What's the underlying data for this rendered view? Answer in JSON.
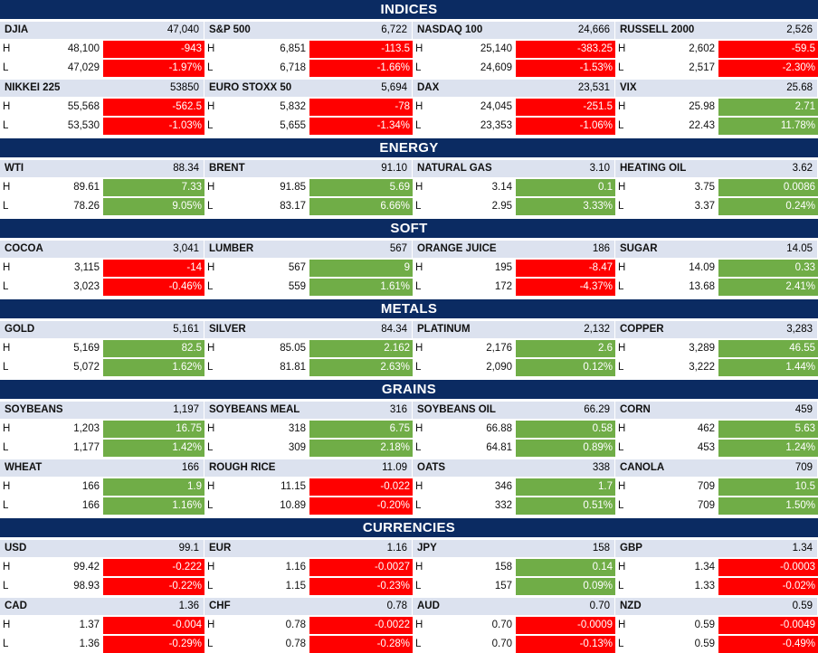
{
  "sections": [
    {
      "title": "INDICES",
      "rows": [
        [
          {
            "name": "DJIA",
            "price": "47,040",
            "high": "48,100",
            "low": "47,029",
            "chg": "-943",
            "pct": "-1.97%",
            "dir": "down"
          },
          {
            "name": "S&P 500",
            "price": "6,722",
            "high": "6,851",
            "low": "6,718",
            "chg": "-113.5",
            "pct": "-1.66%",
            "dir": "down"
          },
          {
            "name": "NASDAQ 100",
            "price": "24,666",
            "high": "25,140",
            "low": "24,609",
            "chg": "-383.25",
            "pct": "-1.53%",
            "dir": "down"
          },
          {
            "name": "RUSSELL 2000",
            "price": "2,526",
            "high": "2,602",
            "low": "2,517",
            "chg": "-59.5",
            "pct": "-2.30%",
            "dir": "down"
          }
        ],
        [
          {
            "name": "NIKKEI 225",
            "price": "53850",
            "high": "55,568",
            "low": "53,530",
            "chg": "-562.5",
            "pct": "-1.03%",
            "dir": "down"
          },
          {
            "name": "EURO STOXX 50",
            "price": "5,694",
            "high": "5,832",
            "low": "5,655",
            "chg": "-78",
            "pct": "-1.34%",
            "dir": "down"
          },
          {
            "name": "DAX",
            "price": "23,531",
            "high": "24,045",
            "low": "23,353",
            "chg": "-251.5",
            "pct": "-1.06%",
            "dir": "down"
          },
          {
            "name": "VIX",
            "price": "25.68",
            "high": "25.98",
            "low": "22.43",
            "chg": "2.71",
            "pct": "11.78%",
            "dir": "up"
          }
        ]
      ]
    },
    {
      "title": "ENERGY",
      "rows": [
        [
          {
            "name": "WTI",
            "price": "88.34",
            "high": "89.61",
            "low": "78.26",
            "chg": "7.33",
            "pct": "9.05%",
            "dir": "up"
          },
          {
            "name": "BRENT",
            "price": "91.10",
            "high": "91.85",
            "low": "83.17",
            "chg": "5.69",
            "pct": "6.66%",
            "dir": "up"
          },
          {
            "name": "NATURAL GAS",
            "price": "3.10",
            "high": "3.14",
            "low": "2.95",
            "chg": "0.1",
            "pct": "3.33%",
            "dir": "up"
          },
          {
            "name": "HEATING OIL",
            "price": "3.62",
            "high": "3.75",
            "low": "3.37",
            "chg": "0.0086",
            "pct": "0.24%",
            "dir": "up"
          }
        ]
      ]
    },
    {
      "title": "SOFT",
      "rows": [
        [
          {
            "name": "COCOA",
            "price": "3,041",
            "high": "3,115",
            "low": "3,023",
            "chg": "-14",
            "pct": "-0.46%",
            "dir": "down"
          },
          {
            "name": "LUMBER",
            "price": "567",
            "high": "567",
            "low": "559",
            "chg": "9",
            "pct": "1.61%",
            "dir": "up"
          },
          {
            "name": "ORANGE JUICE",
            "price": "186",
            "high": "195",
            "low": "172",
            "chg": "-8.47",
            "pct": "-4.37%",
            "dir": "down"
          },
          {
            "name": "SUGAR",
            "price": "14.05",
            "high": "14.09",
            "low": "13.68",
            "chg": "0.33",
            "pct": "2.41%",
            "dir": "up"
          }
        ]
      ]
    },
    {
      "title": "METALS",
      "rows": [
        [
          {
            "name": "GOLD",
            "price": "5,161",
            "high": "5,169",
            "low": "5,072",
            "chg": "82.5",
            "pct": "1.62%",
            "dir": "up"
          },
          {
            "name": "SILVER",
            "price": "84.34",
            "high": "85.05",
            "low": "81.81",
            "chg": "2.162",
            "pct": "2.63%",
            "dir": "up"
          },
          {
            "name": "PLATINUM",
            "price": "2,132",
            "high": "2,176",
            "low": "2,090",
            "chg": "2.6",
            "pct": "0.12%",
            "dir": "up"
          },
          {
            "name": "COPPER",
            "price": "3,283",
            "high": "3,289",
            "low": "3,222",
            "chg": "46.55",
            "pct": "1.44%",
            "dir": "up"
          }
        ]
      ]
    },
    {
      "title": "GRAINS",
      "rows": [
        [
          {
            "name": "SOYBEANS",
            "price": "1,197",
            "high": "1,203",
            "low": "1,177",
            "chg": "16.75",
            "pct": "1.42%",
            "dir": "up"
          },
          {
            "name": "SOYBEANS MEAL",
            "price": "316",
            "high": "318",
            "low": "309",
            "chg": "6.75",
            "pct": "2.18%",
            "dir": "up"
          },
          {
            "name": "SOYBEANS OIL",
            "price": "66.29",
            "high": "66.88",
            "low": "64.81",
            "chg": "0.58",
            "pct": "0.89%",
            "dir": "up"
          },
          {
            "name": "CORN",
            "price": "459",
            "high": "462",
            "low": "453",
            "chg": "5.63",
            "pct": "1.24%",
            "dir": "up"
          }
        ],
        [
          {
            "name": "WHEAT",
            "price": "166",
            "high": "166",
            "low": "166",
            "chg": "1.9",
            "pct": "1.16%",
            "dir": "up"
          },
          {
            "name": "ROUGH RICE",
            "price": "11.09",
            "high": "11.15",
            "low": "10.89",
            "chg": "-0.022",
            "pct": "-0.20%",
            "dir": "down"
          },
          {
            "name": "OATS",
            "price": "338",
            "high": "346",
            "low": "332",
            "chg": "1.7",
            "pct": "0.51%",
            "dir": "up"
          },
          {
            "name": "CANOLA",
            "price": "709",
            "high": "709",
            "low": "709",
            "chg": "10.5",
            "pct": "1.50%",
            "dir": "up"
          }
        ]
      ]
    },
    {
      "title": "CURRENCIES",
      "rows": [
        [
          {
            "name": "USD",
            "price": "99.1",
            "high": "99.42",
            "low": "98.93",
            "chg": "-0.222",
            "pct": "-0.22%",
            "dir": "down"
          },
          {
            "name": "EUR",
            "price": "1.16",
            "high": "1.16",
            "low": "1.15",
            "chg": "-0.0027",
            "pct": "-0.23%",
            "dir": "down"
          },
          {
            "name": "JPY",
            "price": "158",
            "high": "158",
            "low": "157",
            "chg": "0.14",
            "pct": "0.09%",
            "dir": "up"
          },
          {
            "name": "GBP",
            "price": "1.34",
            "high": "1.34",
            "low": "1.33",
            "chg": "-0.0003",
            "pct": "-0.02%",
            "dir": "down"
          }
        ],
        [
          {
            "name": "CAD",
            "price": "1.36",
            "high": "1.37",
            "low": "1.36",
            "chg": "-0.004",
            "pct": "-0.29%",
            "dir": "down"
          },
          {
            "name": "CHF",
            "price": "0.78",
            "high": "0.78",
            "low": "0.78",
            "chg": "-0.0022",
            "pct": "-0.28%",
            "dir": "down"
          },
          {
            "name": "AUD",
            "price": "0.70",
            "high": "0.70",
            "low": "0.70",
            "chg": "-0.0009",
            "pct": "-0.13%",
            "dir": "down"
          },
          {
            "name": "NZD",
            "price": "0.59",
            "high": "0.59",
            "low": "0.59",
            "chg": "-0.0049",
            "pct": "-0.49%",
            "dir": "down"
          }
        ]
      ]
    }
  ],
  "labels": {
    "high": "H",
    "low": "L"
  },
  "colors": {
    "header": "#0b2b62",
    "name_bg": "#dce2ef",
    "up": "#70ad47",
    "down": "#ff0000"
  }
}
